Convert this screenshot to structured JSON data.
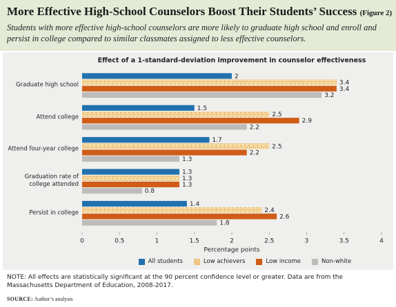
{
  "chart_data": {
    "type": "bar",
    "orientation": "horizontal",
    "title": "More Effective High-School Counselors Boost Their Students’ Success",
    "title_note": "(Figure 2)",
    "subtitle": "Students with more effective high-school counselors are more likely to graduate high school and enroll and persist in college compared to similar classmates assigned to less effective counselors.",
    "chart_title": "Effect of a 1-standard-deviation improvement in counselor effectiveness",
    "xlabel": "Percentage points",
    "categories": [
      "Graduate high school",
      "Attend college",
      "Attend four-year college",
      "Graduation rate of college attended",
      "Persist in college"
    ],
    "series": [
      {
        "name": "All students",
        "color": "#2071ad",
        "values": [
          2,
          1.5,
          1.7,
          1.3,
          1.4
        ]
      },
      {
        "name": "Low achievers",
        "color": "#f6dca6",
        "hatch": true,
        "values": [
          3.4,
          2.5,
          2.5,
          1.3,
          2.4
        ]
      },
      {
        "name": "Low income",
        "color": "#cf5d17",
        "values": [
          3.4,
          2.9,
          2.2,
          1.3,
          2.6
        ]
      },
      {
        "name": "Non-white",
        "color": "#bdbcbb",
        "values": [
          3.2,
          2.2,
          1.3,
          0.8,
          1.8
        ]
      }
    ],
    "xlim": [
      0,
      4
    ],
    "xticks": [
      0,
      0.5,
      1,
      1.5,
      2,
      2.5,
      3,
      3.5,
      4
    ],
    "grid": false,
    "legend": "bottom",
    "note": "NOTE: All effects are statistically significant at the 90 percent confidence level or greater. Data are from the Massachusetts Department of Education, 2008-2017.",
    "source_label": "SOURCE:",
    "source": "Author’s analysis"
  }
}
